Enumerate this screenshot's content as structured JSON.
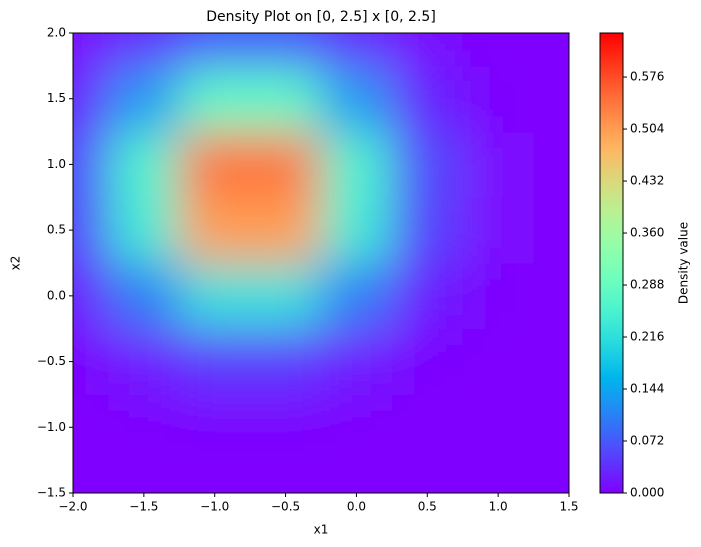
{
  "chart_data": {
    "type": "heatmap",
    "title": "Density Plot on [0, 2.5] x [0, 2.5]",
    "x_label": "x1",
    "y_label": "x2",
    "colorbar_label": "Density value",
    "colormap": "rainbow",
    "x": [
      -2,
      -1.5,
      -1,
      -0.5,
      0,
      0.5,
      1,
      1.5
    ],
    "y": [
      -1.5,
      -1,
      -0.5,
      0,
      0.5,
      1,
      1.5,
      2
    ],
    "z": [
      [
        0.0,
        0.0,
        0.0,
        0.0,
        0.0,
        0.0,
        0.0,
        0.0
      ],
      [
        0.0,
        0.002,
        0.005,
        0.005,
        0.002,
        0.0,
        0.0,
        0.0
      ],
      [
        0.005,
        0.022,
        0.046,
        0.046,
        0.022,
        0.005,
        0.001,
        0.0
      ],
      [
        0.024,
        0.105,
        0.221,
        0.221,
        0.105,
        0.024,
        0.003,
        0.0
      ],
      [
        0.053,
        0.238,
        0.502,
        0.502,
        0.238,
        0.053,
        0.006,
        0.0
      ],
      [
        0.058,
        0.256,
        0.541,
        0.541,
        0.256,
        0.058,
        0.006,
        0.0
      ],
      [
        0.029,
        0.131,
        0.276,
        0.276,
        0.131,
        0.029,
        0.003,
        0.0
      ],
      [
        0.007,
        0.032,
        0.067,
        0.067,
        0.032,
        0.007,
        0.001,
        0.0
      ]
    ],
    "xlim": [
      -2,
      1.5
    ],
    "xticks": [
      {
        "value": -2,
        "label": "−2.0"
      },
      {
        "value": -1.5,
        "label": "−1.5"
      },
      {
        "value": -1,
        "label": "−1.0"
      },
      {
        "value": -0.5,
        "label": "−0.5"
      },
      {
        "value": 0,
        "label": "0.0"
      },
      {
        "value": 0.5,
        "label": "0.5"
      },
      {
        "value": 1,
        "label": "1.0"
      },
      {
        "value": 1.5,
        "label": "1.5"
      }
    ],
    "ylim": [
      -1.5,
      2
    ],
    "yticks": [
      {
        "value": -1.5,
        "label": "−1.5"
      },
      {
        "value": -1,
        "label": "−1.0"
      },
      {
        "value": -0.5,
        "label": "−0.5"
      },
      {
        "value": 0,
        "label": "0.0"
      },
      {
        "value": 0.5,
        "label": "0.5"
      },
      {
        "value": 1,
        "label": "1.0"
      },
      {
        "value": 1.5,
        "label": "1.5"
      },
      {
        "value": 2,
        "label": "2.0"
      }
    ],
    "zlim": [
      0,
      0.637
    ],
    "zticks": [
      {
        "value": 0,
        "label": "0.000"
      },
      0.072,
      0.144,
      0.216,
      0.288,
      {
        "value": 0.36,
        "label": "0.360"
      },
      0.432,
      0.504,
      0.576
    ]
  }
}
